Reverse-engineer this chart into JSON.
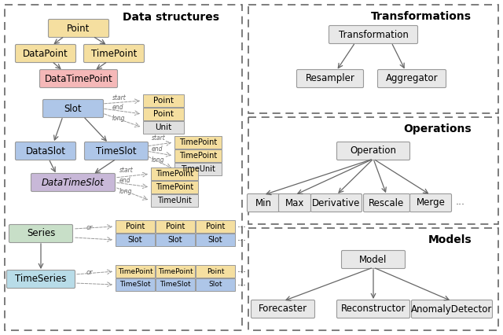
{
  "fig_width": 6.4,
  "fig_height": 4.26,
  "bg_color": "#ffffff",
  "box_colors": {
    "point_family": "#f5dfa0",
    "datatimepoint": "#f5b8b8",
    "slot_family": "#aec6e8",
    "datatimeslot": "#c8b8d8",
    "series": "#c8dfc8",
    "timeseries": "#b8dce8",
    "unit": "#e0e0e0",
    "right_panel": "#e8e8e8"
  },
  "section_titles": {
    "left": "Data structures",
    "transformations": "Transformations",
    "operations": "Operations",
    "models": "Models"
  }
}
